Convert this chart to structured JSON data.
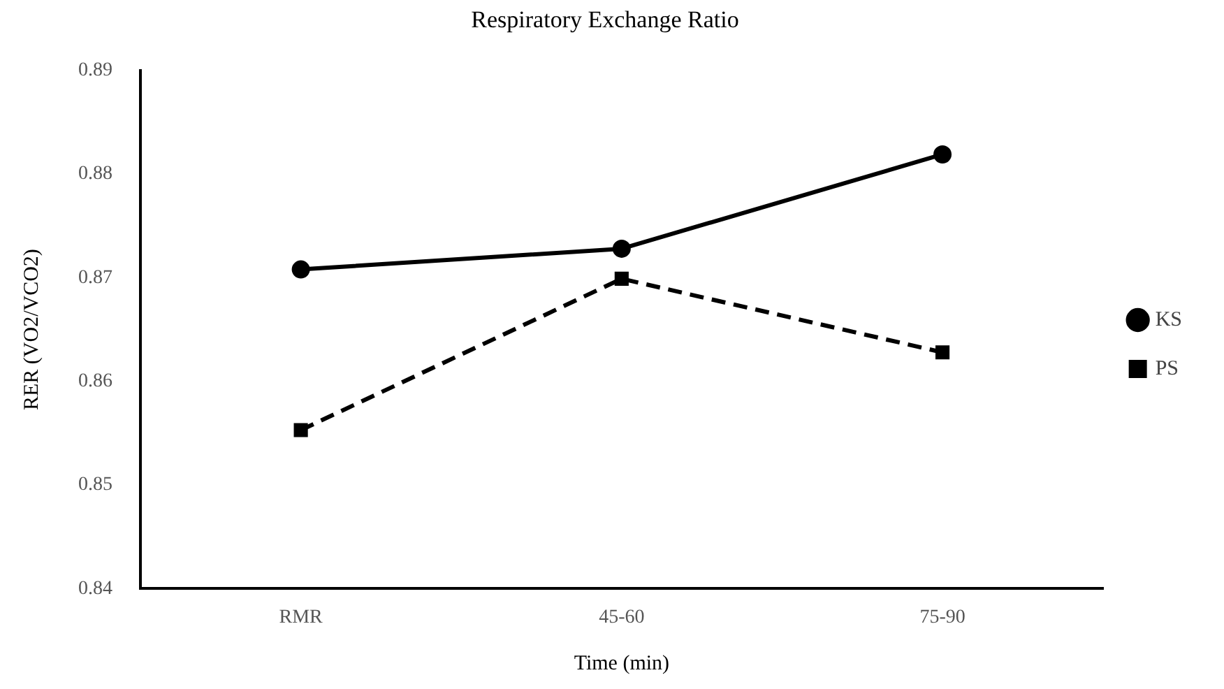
{
  "chart_data": {
    "type": "line",
    "title": "Respiratory Exchange Ratio",
    "xlabel": "Time (min)",
    "ylabel": "RER (VO2/VCO2)",
    "categories": [
      "RMR",
      "45-60",
      "75-90"
    ],
    "series": [
      {
        "name": "KS",
        "color": "#000000",
        "values": [
          0.8708,
          0.8728,
          0.8819
        ],
        "marker": "circle",
        "line_style": "solid"
      },
      {
        "name": "PS",
        "color": "#000000",
        "values": [
          0.8553,
          0.8699,
          0.8628
        ],
        "marker": "square",
        "line_style": "dashed"
      }
    ],
    "ylim": [
      0.84,
      0.89
    ],
    "yticks": [
      0.84,
      0.85,
      0.86,
      0.87,
      0.88,
      0.89
    ],
    "grid": false,
    "legend": "right"
  }
}
